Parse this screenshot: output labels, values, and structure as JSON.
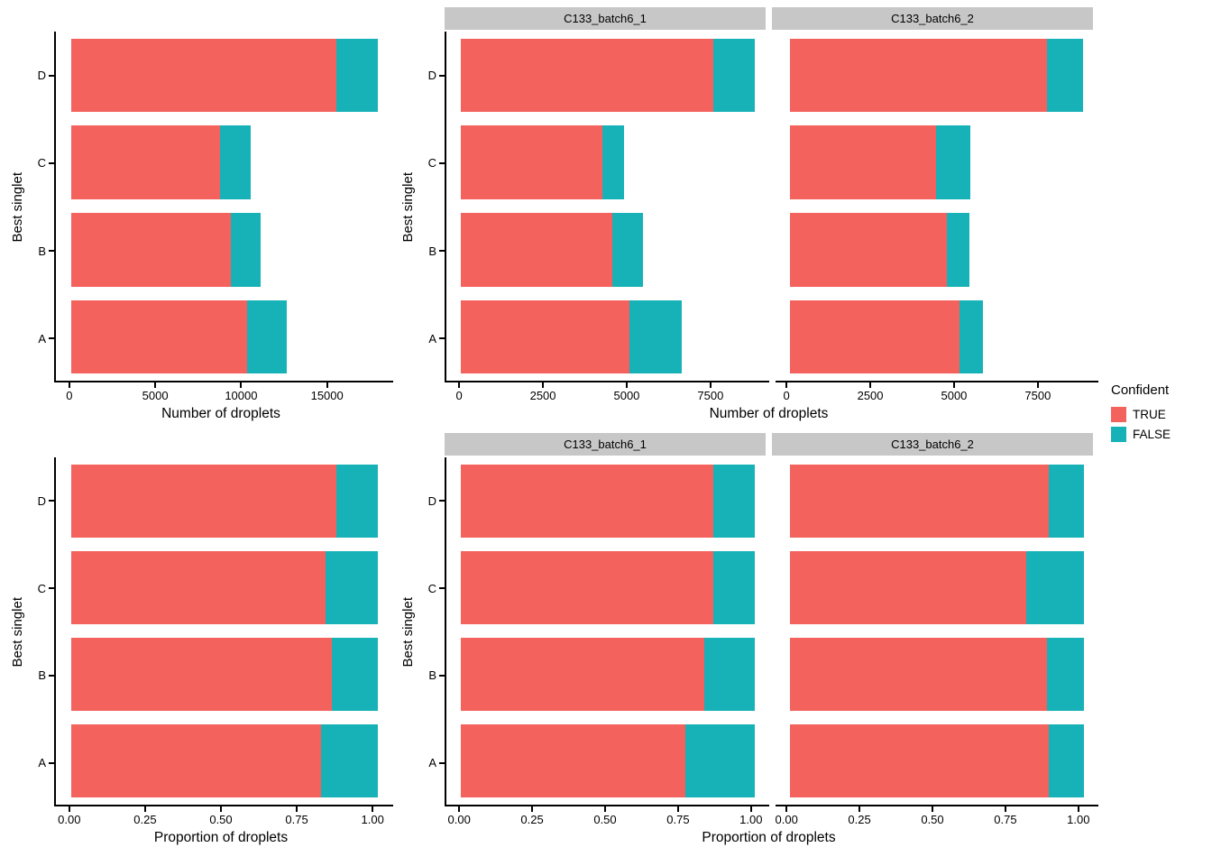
{
  "colors": {
    "true": "#f4625e",
    "false": "#17b2b8",
    "strip_bg": "#c7c7c7",
    "axis": "#000000"
  },
  "legend": {
    "title": "Confident",
    "items": [
      {
        "label": "TRUE",
        "color_key": "true"
      },
      {
        "label": "FALSE",
        "color_key": "false"
      }
    ]
  },
  "chart_data": [
    {
      "id": "counts-overall",
      "type": "bar",
      "orientation": "horizontal",
      "stacked": true,
      "ylabel": "Best singlet",
      "xlabel": "Number of droplets",
      "categories": [
        "D",
        "C",
        "B",
        "A"
      ],
      "series_names": [
        "TRUE",
        "FALSE"
      ],
      "xticks": [
        {
          "value": 0,
          "label": "0"
        },
        {
          "value": 5000,
          "label": "5000"
        },
        {
          "value": 10000,
          "label": "10000"
        },
        {
          "value": 15000,
          "label": "15000"
        }
      ],
      "xmax": 17650,
      "expand_frac": 0.05,
      "grid": false,
      "facets": [
        {
          "strip": null,
          "values": {
            "D": {
              "TRUE": 15250,
              "FALSE": 2400
            },
            "C": {
              "TRUE": 8550,
              "FALSE": 1800
            },
            "B": {
              "TRUE": 9200,
              "FALSE": 1700
            },
            "A": {
              "TRUE": 10100,
              "FALSE": 2330
            }
          }
        }
      ]
    },
    {
      "id": "counts-by-batch",
      "type": "bar",
      "orientation": "horizontal",
      "stacked": true,
      "ylabel": "Best singlet",
      "xlabel": "Number of droplets",
      "categories": [
        "D",
        "C",
        "B",
        "A"
      ],
      "series_names": [
        "TRUE",
        "FALSE"
      ],
      "xticks": [
        {
          "value": 0,
          "label": "0"
        },
        {
          "value": 2500,
          "label": "2500"
        },
        {
          "value": 5000,
          "label": "5000"
        },
        {
          "value": 7500,
          "label": "7500"
        }
      ],
      "xmax": 8710,
      "expand_frac": 0.05,
      "grid": false,
      "facets": [
        {
          "strip": "C133_batch6_1",
          "values": {
            "D": {
              "TRUE": 7480,
              "FALSE": 1230
            },
            "C": {
              "TRUE": 4190,
              "FALSE": 650
            },
            "B": {
              "TRUE": 4480,
              "FALSE": 920
            },
            "A": {
              "TRUE": 5000,
              "FALSE": 1540
            }
          }
        },
        {
          "strip": "C133_batch6_2",
          "values": {
            "D": {
              "TRUE": 7630,
              "FALSE": 1050
            },
            "C": {
              "TRUE": 4320,
              "FALSE": 1030
            },
            "B": {
              "TRUE": 4660,
              "FALSE": 660
            },
            "A": {
              "TRUE": 5030,
              "FALSE": 700
            }
          }
        }
      ]
    },
    {
      "id": "proportion-overall",
      "type": "bar",
      "orientation": "horizontal",
      "stacked": true,
      "ylabel": "Best singlet",
      "xlabel": "Proportion of droplets",
      "categories": [
        "D",
        "C",
        "B",
        "A"
      ],
      "series_names": [
        "TRUE",
        "FALSE"
      ],
      "xticks": [
        {
          "value": 0,
          "label": "0.00"
        },
        {
          "value": 0.25,
          "label": "0.25"
        },
        {
          "value": 0.5,
          "label": "0.50"
        },
        {
          "value": 0.75,
          "label": "0.75"
        },
        {
          "value": 1,
          "label": "1.00"
        }
      ],
      "xmax": 1,
      "expand_frac": 0.05,
      "grid": false,
      "facets": [
        {
          "strip": null,
          "values": {
            "D": {
              "TRUE": 0.865,
              "FALSE": 0.135
            },
            "C": {
              "TRUE": 0.83,
              "FALSE": 0.17
            },
            "B": {
              "TRUE": 0.85,
              "FALSE": 0.15
            },
            "A": {
              "TRUE": 0.815,
              "FALSE": 0.185
            }
          }
        }
      ]
    },
    {
      "id": "proportion-by-batch",
      "type": "bar",
      "orientation": "horizontal",
      "stacked": true,
      "ylabel": "Best singlet",
      "xlabel": "Proportion of droplets",
      "categories": [
        "D",
        "C",
        "B",
        "A"
      ],
      "series_names": [
        "TRUE",
        "FALSE"
      ],
      "xticks": [
        {
          "value": 0,
          "label": "0.00"
        },
        {
          "value": 0.25,
          "label": "0.25"
        },
        {
          "value": 0.5,
          "label": "0.50"
        },
        {
          "value": 0.75,
          "label": "0.75"
        },
        {
          "value": 1,
          "label": "1.00"
        }
      ],
      "xmax": 1,
      "expand_frac": 0.05,
      "grid": false,
      "facets": [
        {
          "strip": "C133_batch6_1",
          "values": {
            "D": {
              "TRUE": 0.86,
              "FALSE": 0.14
            },
            "C": {
              "TRUE": 0.86,
              "FALSE": 0.14
            },
            "B": {
              "TRUE": 0.83,
              "FALSE": 0.17
            },
            "A": {
              "TRUE": 0.765,
              "FALSE": 0.235
            }
          }
        },
        {
          "strip": "C133_batch6_2",
          "values": {
            "D": {
              "TRUE": 0.88,
              "FALSE": 0.12
            },
            "C": {
              "TRUE": 0.805,
              "FALSE": 0.195
            },
            "B": {
              "TRUE": 0.875,
              "FALSE": 0.125
            },
            "A": {
              "TRUE": 0.88,
              "FALSE": 0.12
            }
          }
        }
      ]
    }
  ]
}
